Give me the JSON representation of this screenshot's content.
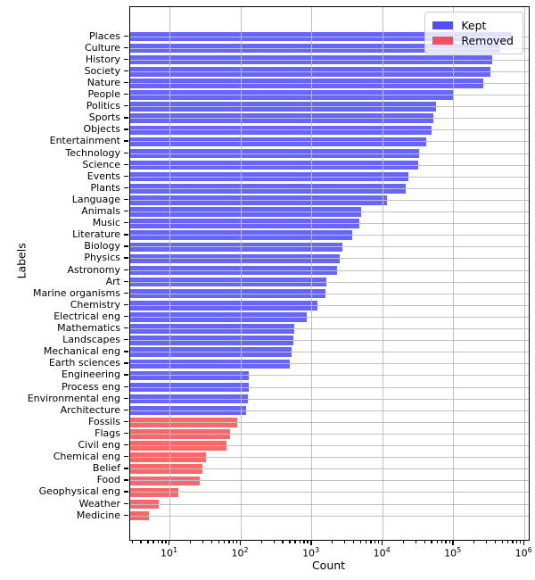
{
  "chart_data": {
    "type": "bar",
    "orientation": "horizontal",
    "xscale": "log",
    "title": "",
    "xlabel": "Count",
    "ylabel": "Labels",
    "xlim": [
      2.75,
      1150000
    ],
    "x_tick_exponents": [
      1,
      2,
      3,
      4,
      5,
      6
    ],
    "grid": true,
    "legend_position": "upper right",
    "series": [
      {
        "name": "Kept",
        "color": "#6666ff"
      },
      {
        "name": "Removed",
        "color": "#ff6666"
      }
    ],
    "bars": [
      {
        "label": "Places",
        "value": 670000,
        "group": "Kept"
      },
      {
        "label": "Culture",
        "value": 460000,
        "group": "Kept"
      },
      {
        "label": "History",
        "value": 350000,
        "group": "Kept"
      },
      {
        "label": "Society",
        "value": 330000,
        "group": "Kept"
      },
      {
        "label": "Nature",
        "value": 260000,
        "group": "Kept"
      },
      {
        "label": "People",
        "value": 100000,
        "group": "Kept"
      },
      {
        "label": "Politics",
        "value": 56000,
        "group": "Kept"
      },
      {
        "label": "Sports",
        "value": 52000,
        "group": "Kept"
      },
      {
        "label": "Objects",
        "value": 49000,
        "group": "Kept"
      },
      {
        "label": "Entertainment",
        "value": 41000,
        "group": "Kept"
      },
      {
        "label": "Technology",
        "value": 33000,
        "group": "Kept"
      },
      {
        "label": "Science",
        "value": 32000,
        "group": "Kept"
      },
      {
        "label": "Events",
        "value": 23000,
        "group": "Kept"
      },
      {
        "label": "Plants",
        "value": 21000,
        "group": "Kept"
      },
      {
        "label": "Language",
        "value": 11500,
        "group": "Kept"
      },
      {
        "label": "Animals",
        "value": 4900,
        "group": "Kept"
      },
      {
        "label": "Music",
        "value": 4700,
        "group": "Kept"
      },
      {
        "label": "Literature",
        "value": 3700,
        "group": "Kept"
      },
      {
        "label": "Biology",
        "value": 2700,
        "group": "Kept"
      },
      {
        "label": "Physics",
        "value": 2500,
        "group": "Kept"
      },
      {
        "label": "Astronomy",
        "value": 2300,
        "group": "Kept"
      },
      {
        "label": "Art",
        "value": 1600,
        "group": "Kept"
      },
      {
        "label": "Marine organisms",
        "value": 1570,
        "group": "Kept"
      },
      {
        "label": "Chemistry",
        "value": 1200,
        "group": "Kept"
      },
      {
        "label": "Electrical eng",
        "value": 840,
        "group": "Kept"
      },
      {
        "label": "Mathematics",
        "value": 560,
        "group": "Kept"
      },
      {
        "label": "Landscapes",
        "value": 545,
        "group": "Kept"
      },
      {
        "label": "Mechanical eng",
        "value": 520,
        "group": "Kept"
      },
      {
        "label": "Earth sciences",
        "value": 490,
        "group": "Kept"
      },
      {
        "label": "Engineering",
        "value": 131,
        "group": "Kept"
      },
      {
        "label": "Process eng",
        "value": 128,
        "group": "Kept"
      },
      {
        "label": "Environmental eng",
        "value": 126,
        "group": "Kept"
      },
      {
        "label": "Architecture",
        "value": 117,
        "group": "Kept"
      },
      {
        "label": "Fossils",
        "value": 90,
        "group": "Removed"
      },
      {
        "label": "Flags",
        "value": 71,
        "group": "Removed"
      },
      {
        "label": "Civil eng",
        "value": 63,
        "group": "Removed"
      },
      {
        "label": "Chemical eng",
        "value": 32,
        "group": "Removed"
      },
      {
        "label": "Belief",
        "value": 29,
        "group": "Removed"
      },
      {
        "label": "Food",
        "value": 26,
        "group": "Removed"
      },
      {
        "label": "Geophysical eng",
        "value": 13,
        "group": "Removed"
      },
      {
        "label": "Weather",
        "value": 7,
        "group": "Removed"
      },
      {
        "label": "Medicine",
        "value": 5,
        "group": "Removed"
      }
    ]
  },
  "legend": {
    "items": [
      {
        "label": "Kept",
        "color": "#5050f0"
      },
      {
        "label": "Removed",
        "color": "#f05060"
      }
    ]
  },
  "colors": {
    "grid": "#bfbfbf",
    "spine": "#000000",
    "kept_bar": "#6666ff",
    "removed_bar": "#ff6666"
  }
}
